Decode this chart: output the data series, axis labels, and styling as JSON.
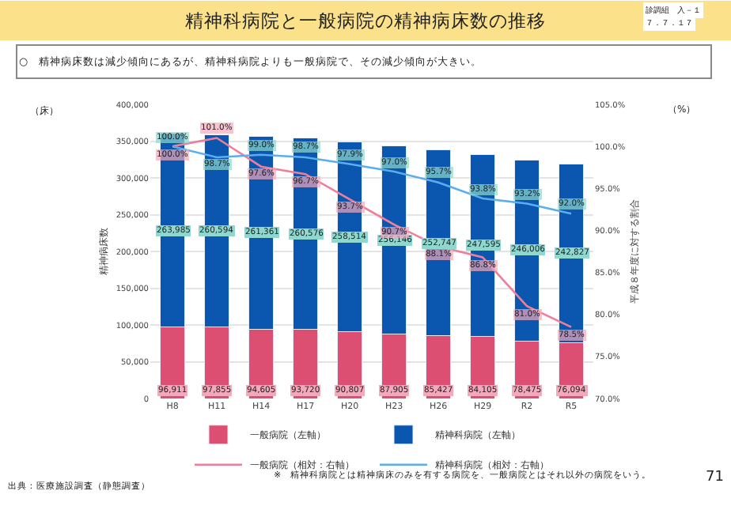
{
  "chart_data": {
    "type": "bar",
    "stacked": true,
    "title": "精神科病院と一般病院の精神病床数の推移",
    "subtitle": "○　精神病床数は減少傾向にあるが、精神科病院よりも一般病院で、その減少傾向が大きい。",
    "ylabel": "精神病床数",
    "y2label": "平成８年度に対する割合",
    "categories": [
      "H8",
      "H11",
      "H14",
      "H17",
      "H20",
      "H23",
      "H26",
      "H29",
      "R2",
      "R5"
    ],
    "series": [
      {
        "name": "一般病院（左軸）",
        "color": "#dc4f73",
        "values": [
          96911,
          97855,
          94605,
          93720,
          90807,
          87905,
          85427,
          84105,
          78475,
          76094
        ],
        "value_labels": [
          "96,911",
          "97,855",
          "94,605",
          "93,720",
          "90,807",
          "87,905",
          "85,427",
          "84,105",
          "78,475",
          "76,094"
        ]
      },
      {
        "name": "精神科病院（左軸）",
        "color": "#0b56ae",
        "values": [
          263985,
          260594,
          261361,
          260576,
          258514,
          256146,
          252747,
          247595,
          246006,
          242827
        ],
        "value_labels": [
          "263,985",
          "260,594",
          "261,361",
          "260,576",
          "258,514",
          "256,146",
          "252,747",
          "247,595",
          "246,006",
          "242,827"
        ]
      },
      {
        "name": "一般病院（相対：右軸）",
        "type": "line",
        "axis": "y2",
        "color": "#ef7f99",
        "values": [
          100.0,
          101.0,
          97.6,
          96.7,
          93.7,
          90.7,
          88.1,
          86.8,
          81.0,
          78.5
        ],
        "value_labels": [
          "100.0%",
          "101.0%",
          "97.6%",
          "96.7%",
          "93.7%",
          "90.7%",
          "88.1%",
          "86.8%",
          "81.0%",
          "78.5%"
        ]
      },
      {
        "name": "精神科病院（相対：右軸）",
        "type": "line",
        "axis": "y2",
        "color": "#5aaef0",
        "values": [
          100.0,
          98.7,
          99.0,
          98.7,
          97.9,
          97.0,
          95.7,
          93.8,
          93.2,
          92.0
        ],
        "value_labels": [
          "100.0%",
          "98.7%",
          "99.0%",
          "98.7%",
          "97.9%",
          "97.0%",
          "95.7%",
          "93.8%",
          "93.2%",
          "92.0%"
        ]
      }
    ],
    "ylim": [
      0,
      400000
    ],
    "yticks": [
      {
        "value": 0,
        "label": "0"
      },
      {
        "value": 50000,
        "label": "50,000"
      },
      {
        "value": 100000,
        "label": "100,000"
      },
      {
        "value": 150000,
        "label": "150,000"
      },
      {
        "value": 200000,
        "label": "200,000"
      },
      {
        "value": 250000,
        "label": "250,000"
      },
      {
        "value": 300000,
        "label": "300,000"
      },
      {
        "value": 350000,
        "label": "350,000"
      },
      {
        "value": 400000,
        "label": "400,000"
      }
    ],
    "y2lim": [
      70,
      105
    ],
    "y2ticks": [
      {
        "value": 70,
        "label": "70.0%"
      },
      {
        "value": 75,
        "label": "75.0%"
      },
      {
        "value": 80,
        "label": "80.0%"
      },
      {
        "value": 85,
        "label": "85.0%"
      },
      {
        "value": 90,
        "label": "90.0%"
      },
      {
        "value": 95,
        "label": "95.0%"
      },
      {
        "value": 100,
        "label": "100.0%"
      },
      {
        "value": 105,
        "label": "105.0%"
      }
    ],
    "grid": "y",
    "legend": "bottom",
    "marker": "none",
    "line_style": "solid",
    "annotations": [
      "（床）",
      "（%）",
      "診調組　入－１",
      "７．７．１７",
      "出典：医療施設調査（静態調査）",
      "※　精神科病院とは精神病床のみを有する病院を、一般病院とはそれ以外の病院をいう。",
      "71"
    ]
  }
}
